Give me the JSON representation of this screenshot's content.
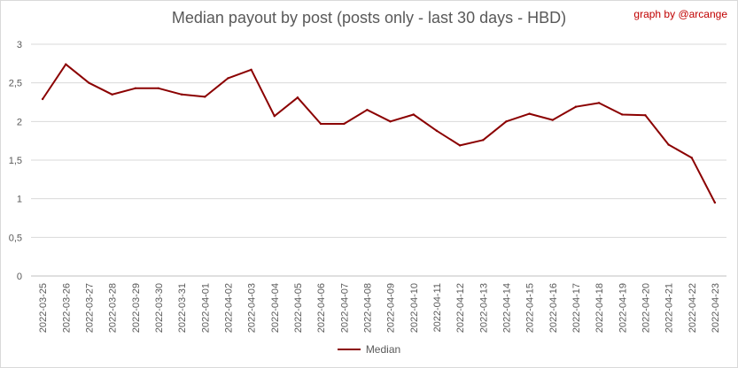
{
  "header": {
    "title": "Median payout by post (posts only - last 30 days - HBD)",
    "credit": "graph by @arcange"
  },
  "chart_data": {
    "type": "line",
    "title": "Median payout by post (posts only - last 30 days - HBD)",
    "xlabel": "",
    "ylabel": "",
    "ylim": [
      0,
      3
    ],
    "yticks": [
      "0",
      "0,5",
      "1",
      "1,5",
      "2",
      "2,5",
      "3"
    ],
    "ytick_values": [
      0,
      0.5,
      1,
      1.5,
      2,
      2.5,
      3
    ],
    "grid": true,
    "legend_position": "bottom",
    "categories": [
      "2022-03-25",
      "2022-03-26",
      "2022-03-27",
      "2022-03-28",
      "2022-03-29",
      "2022-03-30",
      "2022-03-31",
      "2022-04-01",
      "2022-04-02",
      "2022-04-03",
      "2022-04-04",
      "2022-04-05",
      "2022-04-06",
      "2022-04-07",
      "2022-04-08",
      "2022-04-09",
      "2022-04-10",
      "2022-04-11",
      "2022-04-12",
      "2022-04-13",
      "2022-04-14",
      "2022-04-15",
      "2022-04-16",
      "2022-04-17",
      "2022-04-18",
      "2022-04-19",
      "2022-04-20",
      "2022-04-21",
      "2022-04-22",
      "2022-04-23"
    ],
    "series": [
      {
        "name": "Median",
        "color": "#8b0000",
        "values": [
          2.29,
          2.74,
          2.5,
          2.35,
          2.43,
          2.43,
          2.35,
          2.32,
          2.56,
          2.67,
          2.07,
          2.31,
          1.97,
          1.97,
          2.15,
          2.0,
          2.09,
          1.88,
          1.69,
          1.76,
          2.0,
          2.1,
          2.02,
          2.19,
          2.24,
          2.09,
          2.08,
          1.7,
          1.53,
          0.95
        ]
      }
    ]
  }
}
